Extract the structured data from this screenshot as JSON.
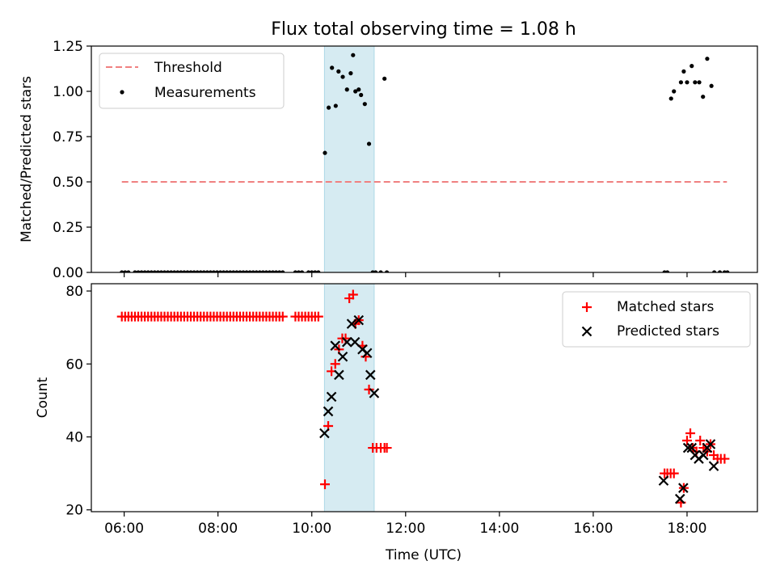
{
  "colors": {
    "threshold": "#f08080",
    "measurements": "#000000",
    "matched": "#ff0000",
    "predicted": "#000000",
    "shade": "#add8e6"
  },
  "chart_data": [
    {
      "type": "scatter",
      "title": "Flux total observing time = 1.08 h",
      "xlabel": "",
      "ylabel": "Matched/Predicted stars",
      "xlim": [
        5.3,
        19.5
      ],
      "ylim": [
        0,
        1.25
      ],
      "yticks": [
        0.0,
        0.25,
        0.5,
        0.75,
        1.0,
        1.25
      ],
      "ytick_labels": [
        "0.00",
        "0.25",
        "0.50",
        "0.75",
        "1.00",
        "1.25"
      ],
      "xticks": [
        6,
        8,
        10,
        12,
        14,
        16,
        18
      ],
      "shaded_region": [
        10.27,
        11.33
      ],
      "legend": {
        "position": "top-left",
        "entries": [
          "Threshold",
          "Measurements"
        ]
      },
      "series": [
        {
          "name": "Threshold",
          "kind": "dashed-line",
          "x": [
            5.95,
            18.85
          ],
          "y": [
            0.5,
            0.5
          ]
        },
        {
          "name": "Measurements",
          "kind": "points",
          "x": [
            5.95,
            6.02,
            6.09,
            6.23,
            6.3,
            6.37,
            6.44,
            6.51,
            6.58,
            6.65,
            6.72,
            6.79,
            6.86,
            6.93,
            7.0,
            7.07,
            7.14,
            7.21,
            7.28,
            7.35,
            7.42,
            7.49,
            7.56,
            7.63,
            7.7,
            7.77,
            7.84,
            7.91,
            7.98,
            8.05,
            8.12,
            8.19,
            8.26,
            8.33,
            8.4,
            8.47,
            8.54,
            8.61,
            8.68,
            8.75,
            8.82,
            8.89,
            8.96,
            9.03,
            9.1,
            9.17,
            9.24,
            9.31,
            9.38,
            9.65,
            9.72,
            9.79,
            9.93,
            10.0,
            10.07,
            10.14,
            10.28,
            10.36,
            10.43,
            10.51,
            10.57,
            10.66,
            10.75,
            10.83,
            10.88,
            10.93,
            11.0,
            11.05,
            11.13,
            11.22,
            11.3,
            11.36,
            11.47,
            11.55,
            11.6,
            17.52,
            17.58,
            17.66,
            17.72,
            17.87,
            17.93,
            18.0,
            18.1,
            18.17,
            18.26,
            18.34,
            18.43,
            18.52,
            18.58,
            18.7,
            18.8,
            18.86
          ],
          "y": [
            0,
            0,
            0,
            0,
            0,
            0,
            0,
            0,
            0,
            0,
            0,
            0,
            0,
            0,
            0,
            0,
            0,
            0,
            0,
            0,
            0,
            0,
            0,
            0,
            0,
            0,
            0,
            0,
            0,
            0,
            0,
            0,
            0,
            0,
            0,
            0,
            0,
            0,
            0,
            0,
            0,
            0,
            0,
            0,
            0,
            0,
            0,
            0,
            0,
            0,
            0,
            0,
            0,
            0,
            0,
            0,
            0.66,
            0.91,
            1.13,
            0.92,
            1.11,
            1.08,
            1.01,
            1.1,
            1.2,
            1.0,
            1.01,
            0.98,
            0.93,
            0.71,
            0,
            0,
            0,
            1.07,
            0,
            0,
            0,
            0.96,
            1.0,
            1.05,
            1.11,
            1.05,
            1.14,
            1.05,
            1.05,
            0.97,
            1.18,
            1.03,
            0,
            0,
            0,
            0
          ]
        }
      ]
    },
    {
      "type": "scatter",
      "title": "",
      "xlabel": "Time (UTC)",
      "ylabel": "Count",
      "xlim": [
        5.3,
        19.5
      ],
      "ylim": [
        19.5,
        82
      ],
      "yticks": [
        20,
        40,
        60,
        80
      ],
      "ytick_labels": [
        "20",
        "40",
        "60",
        "80"
      ],
      "xticks": [
        6,
        8,
        10,
        12,
        14,
        16,
        18
      ],
      "xtick_labels": [
        "06:00",
        "08:00",
        "10:00",
        "12:00",
        "14:00",
        "16:00",
        "18:00"
      ],
      "shaded_region": [
        10.27,
        11.33
      ],
      "legend": {
        "position": "top-right",
        "entries": [
          "Matched stars",
          "Predicted stars"
        ]
      },
      "series": [
        {
          "name": "Matched stars",
          "marker": "plus",
          "x": [
            5.95,
            6.02,
            6.09,
            6.16,
            6.23,
            6.3,
            6.37,
            6.44,
            6.51,
            6.58,
            6.65,
            6.72,
            6.79,
            6.86,
            6.93,
            7.0,
            7.07,
            7.14,
            7.21,
            7.28,
            7.35,
            7.42,
            7.49,
            7.56,
            7.63,
            7.7,
            7.77,
            7.84,
            7.91,
            7.98,
            8.05,
            8.12,
            8.19,
            8.26,
            8.33,
            8.4,
            8.47,
            8.54,
            8.61,
            8.68,
            8.75,
            8.82,
            8.89,
            8.96,
            9.03,
            9.1,
            9.17,
            9.24,
            9.31,
            9.38,
            9.65,
            9.72,
            9.79,
            9.86,
            9.93,
            10.0,
            10.07,
            10.14,
            10.28,
            10.35,
            10.42,
            10.5,
            10.58,
            10.65,
            10.72,
            10.8,
            10.88,
            10.93,
            11.0,
            11.08,
            11.15,
            11.22,
            11.3,
            11.38,
            11.47,
            11.55,
            11.6,
            17.52,
            17.58,
            17.65,
            17.72,
            17.87,
            17.93,
            18.0,
            18.07,
            18.12,
            18.2,
            18.28,
            18.35,
            18.43,
            18.5,
            18.57,
            18.65,
            18.72,
            18.8
          ],
          "y": [
            73,
            73,
            73,
            73,
            73,
            73,
            73,
            73,
            73,
            73,
            73,
            73,
            73,
            73,
            73,
            73,
            73,
            73,
            73,
            73,
            73,
            73,
            73,
            73,
            73,
            73,
            73,
            73,
            73,
            73,
            73,
            73,
            73,
            73,
            73,
            73,
            73,
            73,
            73,
            73,
            73,
            73,
            73,
            73,
            73,
            73,
            73,
            73,
            73,
            73,
            73,
            73,
            73,
            73,
            73,
            73,
            73,
            73,
            27,
            43,
            58,
            60,
            64,
            67,
            67,
            78,
            79,
            71,
            72,
            65,
            62,
            53,
            37,
            37,
            37,
            37,
            37,
            30,
            30,
            30,
            30,
            22,
            26,
            39,
            41,
            37,
            36,
            39,
            37,
            36,
            38,
            35,
            34,
            34,
            34
          ]
        },
        {
          "name": "Predicted stars",
          "marker": "x",
          "x": [
            10.27,
            10.35,
            10.42,
            10.5,
            10.58,
            10.66,
            10.75,
            10.85,
            10.92,
            11.0,
            11.08,
            11.18,
            11.25,
            11.33,
            17.5,
            17.85,
            17.92,
            18.02,
            18.1,
            18.17,
            18.25,
            18.35,
            18.43,
            18.5,
            18.57
          ],
          "y": [
            41,
            47,
            51,
            65,
            57,
            62,
            66,
            71,
            66,
            72,
            64,
            63,
            57,
            52,
            28,
            23,
            26,
            37,
            37,
            35,
            34,
            35,
            37,
            38,
            32
          ]
        }
      ]
    }
  ]
}
